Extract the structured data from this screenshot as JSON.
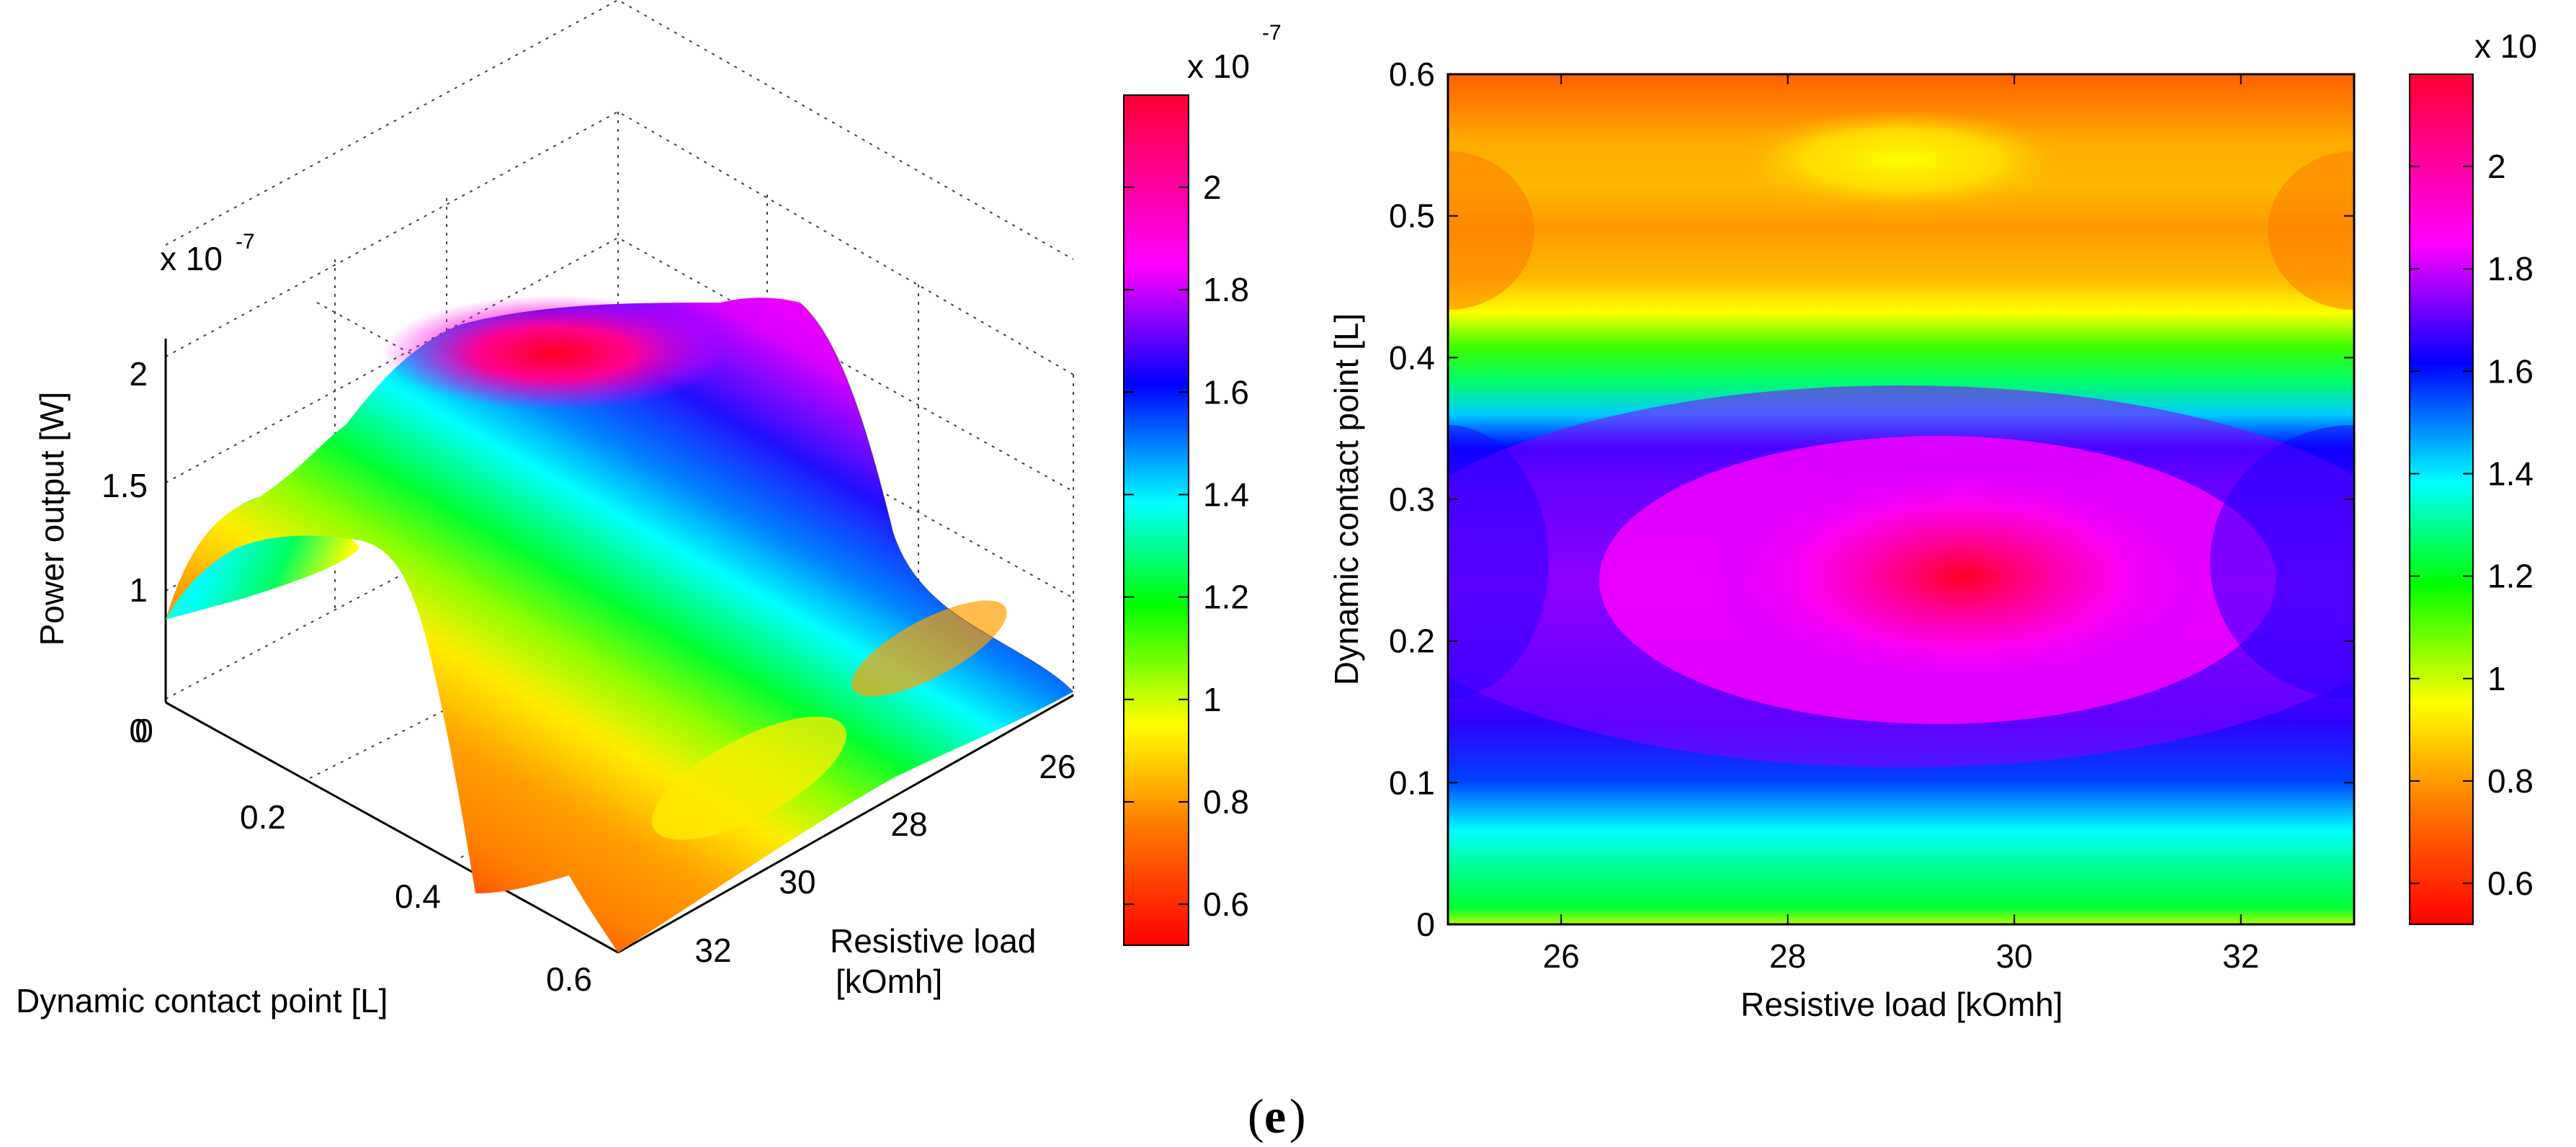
{
  "caption": {
    "open": "(",
    "letter": "e",
    "close": ")"
  },
  "chart_data": [
    {
      "type": "surface",
      "title": "",
      "zlabel": "Power output [W]",
      "z_exponent": "x 10",
      "z_exponent_power": "-7",
      "xlabel_line1": "Resistive load",
      "xlabel_line2": "[kOmh]",
      "ylabel": "Dynamic contact point [L]",
      "x_range": [
        25,
        33
      ],
      "y_range": [
        0,
        0.6
      ],
      "z_range": [
        0,
        2.2
      ],
      "x_ticks": [
        "26",
        "28",
        "30",
        "32"
      ],
      "y_ticks": [
        "0",
        "0.2",
        "0.4",
        "0.6"
      ],
      "z_ticks": [
        "0",
        "1",
        "1.5",
        "2"
      ],
      "grid": true,
      "peak": {
        "x": 29.5,
        "y": 0.25,
        "z": 2.15
      },
      "colorbar": {
        "exponent": "x 10",
        "exponent_power": "-7",
        "ticks": [
          "0.6",
          "0.8",
          "1",
          "1.2",
          "1.4",
          "1.6",
          "1.8",
          "2"
        ],
        "range": [
          0.52,
          2.18
        ],
        "colormap": "hsv"
      }
    },
    {
      "type": "heatmap",
      "title": "",
      "xlabel": "Resistive load [kOmh]",
      "ylabel": "Dynamic contact point [L]",
      "x_range": [
        25,
        33
      ],
      "y_range": [
        0,
        0.6
      ],
      "x_ticks": [
        "26",
        "28",
        "30",
        "32"
      ],
      "y_ticks": [
        "0",
        "0.1",
        "0.2",
        "0.3",
        "0.4",
        "0.5",
        "0.6"
      ],
      "hotspots": [
        {
          "x": 29.5,
          "y": 0.25,
          "value": 2.15
        },
        {
          "x": 29.0,
          "y": 0.54,
          "value": 0.82
        }
      ],
      "colorbar": {
        "exponent": "x 10",
        "ticks": [
          "0.6",
          "0.8",
          "1",
          "1.2",
          "1.4",
          "1.6",
          "1.8",
          "2"
        ],
        "range": [
          0.52,
          2.18
        ],
        "colormap": "hsv"
      }
    }
  ]
}
